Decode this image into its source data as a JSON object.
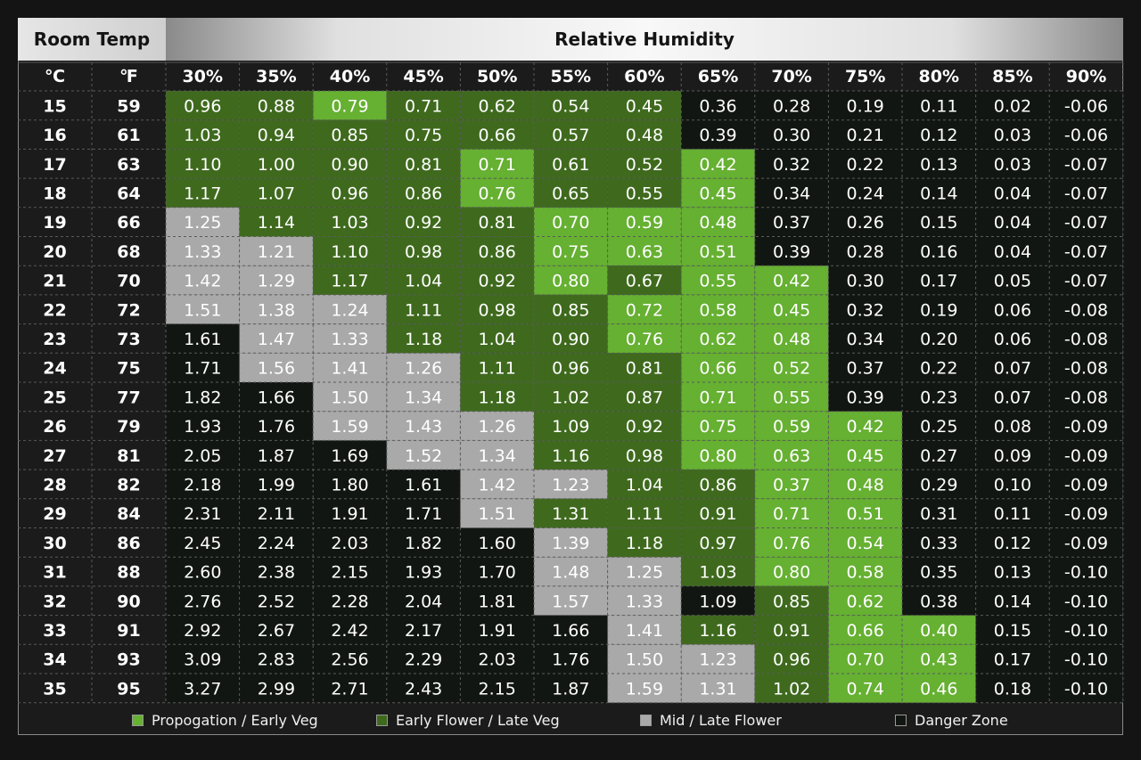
{
  "header": {
    "room_temp": "Room Temp",
    "humidity": "Relative Humidity"
  },
  "colors": {
    "propagation": "#66b032",
    "early_flower": "#3f6a1e",
    "mid_flower": "#a9a9a9",
    "danger": "#121612",
    "grid": "#5a5a5a"
  },
  "legend": [
    {
      "label": "Propogation / Early Veg",
      "color": "#66b032"
    },
    {
      "label": "Early Flower / Late Veg",
      "color": "#3f6a1e"
    },
    {
      "label": "Mid / Late Flower",
      "color": "#a9a9a9"
    },
    {
      "label": "Danger Zone",
      "color": "#121612"
    }
  ],
  "chart_data": {
    "type": "heatmap",
    "col_headers": [
      "℃",
      "℉"
    ],
    "x": [
      "30%",
      "35%",
      "40%",
      "45%",
      "50%",
      "55%",
      "60%",
      "65%",
      "70%",
      "75%",
      "80%",
      "85%",
      "90%"
    ],
    "celsius": [
      "15",
      "16",
      "17",
      "18",
      "19",
      "20",
      "21",
      "22",
      "23",
      "24",
      "25",
      "26",
      "27",
      "28",
      "29",
      "30",
      "31",
      "32",
      "33",
      "34",
      "35"
    ],
    "fahrenheit": [
      "59",
      "61",
      "63",
      "64",
      "66",
      "68",
      "70",
      "72",
      "73",
      "75",
      "77",
      "79",
      "81",
      "82",
      "84",
      "86",
      "88",
      "90",
      "91",
      "93",
      "95"
    ],
    "values": [
      [
        "0.96",
        "0.88",
        "0.79",
        "0.71",
        "0.62",
        "0.54",
        "0.45",
        "0.36",
        "0.28",
        "0.19",
        "0.11",
        "0.02",
        "-0.06"
      ],
      [
        "1.03",
        "0.94",
        "0.85",
        "0.75",
        "0.66",
        "0.57",
        "0.48",
        "0.39",
        "0.30",
        "0.21",
        "0.12",
        "0.03",
        "-0.06"
      ],
      [
        "1.10",
        "1.00",
        "0.90",
        "0.81",
        "0.71",
        "0.61",
        "0.52",
        "0.42",
        "0.32",
        "0.22",
        "0.13",
        "0.03",
        "-0.07"
      ],
      [
        "1.17",
        "1.07",
        "0.96",
        "0.86",
        "0.76",
        "0.65",
        "0.55",
        "0.45",
        "0.34",
        "0.24",
        "0.14",
        "0.04",
        "-0.07"
      ],
      [
        "1.25",
        "1.14",
        "1.03",
        "0.92",
        "0.81",
        "0.70",
        "0.59",
        "0.48",
        "0.37",
        "0.26",
        "0.15",
        "0.04",
        "-0.07"
      ],
      [
        "1.33",
        "1.21",
        "1.10",
        "0.98",
        "0.86",
        "0.75",
        "0.63",
        "0.51",
        "0.39",
        "0.28",
        "0.16",
        "0.04",
        "-0.07"
      ],
      [
        "1.42",
        "1.29",
        "1.17",
        "1.04",
        "0.92",
        "0.80",
        "0.67",
        "0.55",
        "0.42",
        "0.30",
        "0.17",
        "0.05",
        "-0.07"
      ],
      [
        "1.51",
        "1.38",
        "1.24",
        "1.11",
        "0.98",
        "0.85",
        "0.72",
        "0.58",
        "0.45",
        "0.32",
        "0.19",
        "0.06",
        "-0.08"
      ],
      [
        "1.61",
        "1.47",
        "1.33",
        "1.18",
        "1.04",
        "0.90",
        "0.76",
        "0.62",
        "0.48",
        "0.34",
        "0.20",
        "0.06",
        "-0.08"
      ],
      [
        "1.71",
        "1.56",
        "1.41",
        "1.26",
        "1.11",
        "0.96",
        "0.81",
        "0.66",
        "0.52",
        "0.37",
        "0.22",
        "0.07",
        "-0.08"
      ],
      [
        "1.82",
        "1.66",
        "1.50",
        "1.34",
        "1.18",
        "1.02",
        "0.87",
        "0.71",
        "0.55",
        "0.39",
        "0.23",
        "0.07",
        "-0.08"
      ],
      [
        "1.93",
        "1.76",
        "1.59",
        "1.43",
        "1.26",
        "1.09",
        "0.92",
        "0.75",
        "0.59",
        "0.42",
        "0.25",
        "0.08",
        "-0.09"
      ],
      [
        "2.05",
        "1.87",
        "1.69",
        "1.52",
        "1.34",
        "1.16",
        "0.98",
        "0.80",
        "0.63",
        "0.45",
        "0.27",
        "0.09",
        "-0.09"
      ],
      [
        "2.18",
        "1.99",
        "1.80",
        "1.61",
        "1.42",
        "1.23",
        "1.04",
        "0.86",
        "0.37",
        "0.48",
        "0.29",
        "0.10",
        "-0.09"
      ],
      [
        "2.31",
        "2.11",
        "1.91",
        "1.71",
        "1.51",
        "1.31",
        "1.11",
        "0.91",
        "0.71",
        "0.51",
        "0.31",
        "0.11",
        "-0.09"
      ],
      [
        "2.45",
        "2.24",
        "2.03",
        "1.82",
        "1.60",
        "1.39",
        "1.18",
        "0.97",
        "0.76",
        "0.54",
        "0.33",
        "0.12",
        "-0.09"
      ],
      [
        "2.60",
        "2.38",
        "2.15",
        "1.93",
        "1.70",
        "1.48",
        "1.25",
        "1.03",
        "0.80",
        "0.58",
        "0.35",
        "0.13",
        "-0.10"
      ],
      [
        "2.76",
        "2.52",
        "2.28",
        "2.04",
        "1.81",
        "1.57",
        "1.33",
        "1.09",
        "0.85",
        "0.62",
        "0.38",
        "0.14",
        "-0.10"
      ],
      [
        "2.92",
        "2.67",
        "2.42",
        "2.17",
        "1.91",
        "1.66",
        "1.41",
        "1.16",
        "0.91",
        "0.66",
        "0.40",
        "0.15",
        "-0.10"
      ],
      [
        "3.09",
        "2.83",
        "2.56",
        "2.29",
        "2.03",
        "1.76",
        "1.50",
        "1.23",
        "0.96",
        "0.70",
        "0.43",
        "0.17",
        "-0.10"
      ],
      [
        "3.27",
        "2.99",
        "2.71",
        "2.43",
        "2.15",
        "1.87",
        "1.59",
        "1.31",
        "1.02",
        "0.74",
        "0.46",
        "0.18",
        "-0.10"
      ]
    ],
    "zones": [
      "GGPGGGGDDDDDD",
      "GGGGGGGDDDDDD",
      "GGGGPGGPDDDDD",
      "GGGGPGGPDDDDD",
      "MGGGGPPPDDDDD",
      "MMGGGPPPDDDDD",
      "MMGGGPGPPDDDD",
      "MMMGGGPPPDDDD",
      "DMMGGGPPPDDDD",
      "DMMMGGGPPDDDD",
      "DDMMGGGPPDDDD",
      "DDMMMGGPPPDDD",
      "DDDMMGGPPPDDD",
      "DDDDMMGGPPDDD",
      "DDDDMGGGPPDDD",
      "DDDDDMGGPPDDD",
      "DDDDDMMGPPDDD",
      "DDDDDMMDGPDDD",
      "DDDDDDMGGPPDD",
      "DDDDDDMMGPPDD",
      "DDDDDDMMGPPDD"
    ]
  }
}
